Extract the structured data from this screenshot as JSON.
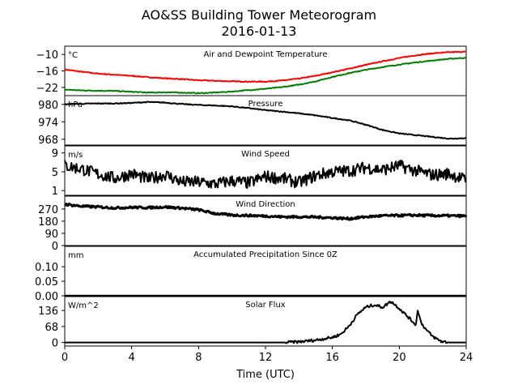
{
  "title_line1": "AO&SS Building Tower Meteorogram",
  "title_line2": "2016-01-13",
  "xlabel": "Time (UTC)",
  "x_ticks": [
    "0",
    "4",
    "8",
    "12",
    "16",
    "20",
    "24"
  ],
  "chart_data": [
    {
      "type": "line",
      "title": "Air and Dewpoint Temperature",
      "unit": "°C",
      "ylim": [
        -25,
        -7
      ],
      "yticks": [
        -10,
        -16,
        -22
      ],
      "ytick_labels": [
        "−10",
        "−16",
        "−22"
      ],
      "x": [
        0,
        1,
        2,
        3,
        4,
        5,
        6,
        7,
        8,
        9,
        10,
        11,
        12,
        13,
        14,
        15,
        16,
        17,
        18,
        19,
        20,
        21,
        22,
        23,
        24
      ],
      "series": [
        {
          "color": "#ff0000",
          "values": [
            -15.5,
            -16.3,
            -17.0,
            -17.4,
            -17.8,
            -18.3,
            -18.7,
            -19.0,
            -19.4,
            -19.6,
            -19.8,
            -19.9,
            -19.9,
            -19.5,
            -18.8,
            -17.8,
            -16.5,
            -15.2,
            -13.8,
            -12.5,
            -11.3,
            -10.3,
            -9.6,
            -9.2,
            -9.0
          ]
        },
        {
          "color": "#008000",
          "values": [
            -22.8,
            -23.1,
            -23.2,
            -23.3,
            -23.6,
            -23.9,
            -23.8,
            -23.9,
            -24.1,
            -23.9,
            -23.5,
            -23.0,
            -22.5,
            -21.9,
            -21.0,
            -19.8,
            -18.2,
            -16.8,
            -15.6,
            -14.6,
            -13.7,
            -12.9,
            -12.2,
            -11.6,
            -11.2
          ]
        }
      ]
    },
    {
      "type": "line",
      "title": "Pressure",
      "unit": "hPa",
      "ylim": [
        966,
        983
      ],
      "yticks": [
        980,
        974,
        968
      ],
      "ytick_labels": [
        "980",
        "974",
        "968"
      ],
      "x": [
        0,
        1,
        2,
        3,
        4,
        5,
        6,
        7,
        8,
        9,
        10,
        11,
        12,
        13,
        14,
        15,
        16,
        17,
        18,
        19,
        20,
        21,
        22,
        23,
        24
      ],
      "series": [
        {
          "color": "#000000",
          "values": [
            980.0,
            980.2,
            980.3,
            980.3,
            980.5,
            980.8,
            980.6,
            980.1,
            979.8,
            979.6,
            979.3,
            978.7,
            978.0,
            977.5,
            976.9,
            976.2,
            975.3,
            974.5,
            973.0,
            971.2,
            970.0,
            969.4,
            968.8,
            968.2,
            968.4
          ]
        }
      ]
    },
    {
      "type": "line",
      "title": "Wind Speed",
      "unit": "m/s",
      "ylim": [
        0,
        10.5
      ],
      "yticks": [
        9,
        5,
        1
      ],
      "ytick_labels": [
        "9",
        "5",
        "1"
      ],
      "x": [
        0,
        1,
        2,
        3,
        4,
        5,
        6,
        7,
        8,
        9,
        10,
        11,
        12,
        13,
        14,
        15,
        16,
        17,
        18,
        19,
        20,
        21,
        22,
        23,
        24
      ],
      "series": [
        {
          "color": "#000000",
          "values": [
            6.3,
            5.6,
            4.5,
            3.6,
            4.6,
            3.4,
            4.4,
            2.8,
            2.8,
            2.4,
            3.1,
            2.6,
            4.0,
            3.6,
            2.7,
            4.2,
            5.0,
            5.2,
            5.9,
            5.4,
            6.3,
            5.2,
            4.3,
            4.6,
            3.2
          ]
        }
      ]
    },
    {
      "type": "line",
      "title": "Wind Direction",
      "unit": "",
      "ylim": [
        0,
        365
      ],
      "yticks": [
        270,
        180,
        90,
        0
      ],
      "ytick_labels": [
        "270",
        "180",
        "90",
        "0"
      ],
      "x": [
        0,
        1,
        2,
        3,
        4,
        5,
        6,
        7,
        8,
        9,
        10,
        11,
        12,
        13,
        14,
        15,
        16,
        17,
        18,
        19,
        20,
        21,
        22,
        23,
        24
      ],
      "series": [
        {
          "color": "#000000",
          "values": [
            305,
            290,
            285,
            278,
            282,
            280,
            285,
            276,
            264,
            236,
            225,
            222,
            218,
            212,
            212,
            210,
            205,
            198,
            212,
            220,
            222,
            224,
            221,
            220,
            218
          ]
        }
      ]
    },
    {
      "type": "line",
      "title": "Accumulated Precipitation Since 0Z",
      "unit": "mm",
      "ylim": [
        0,
        0.17
      ],
      "yticks": [
        0.1,
        0.05,
        0.0
      ],
      "ytick_labels": [
        "0.10",
        "0.05",
        "0.00"
      ],
      "x": [
        0,
        24
      ],
      "series": [
        {
          "color": "#000000",
          "values": [
            0,
            0
          ]
        }
      ]
    },
    {
      "type": "line",
      "title": "Solar Flux",
      "unit": "W/m^2",
      "ylim": [
        -15,
        195
      ],
      "yticks": [
        136,
        68,
        0
      ],
      "ytick_labels": [
        "136",
        "68",
        "0"
      ],
      "x": [
        0,
        13,
        14,
        15,
        16,
        16.5,
        17,
        17.5,
        18,
        18.5,
        19,
        19.5,
        20,
        20.5,
        21,
        21.1,
        21.3,
        21.6,
        22,
        22.5,
        23,
        24
      ],
      "series": [
        {
          "color": "#000000",
          "values": [
            0,
            0,
            3,
            10,
            22,
            35,
            70,
            120,
            150,
            160,
            150,
            175,
            145,
            110,
            75,
            140,
            85,
            55,
            25,
            5,
            0,
            0
          ]
        }
      ]
    }
  ]
}
